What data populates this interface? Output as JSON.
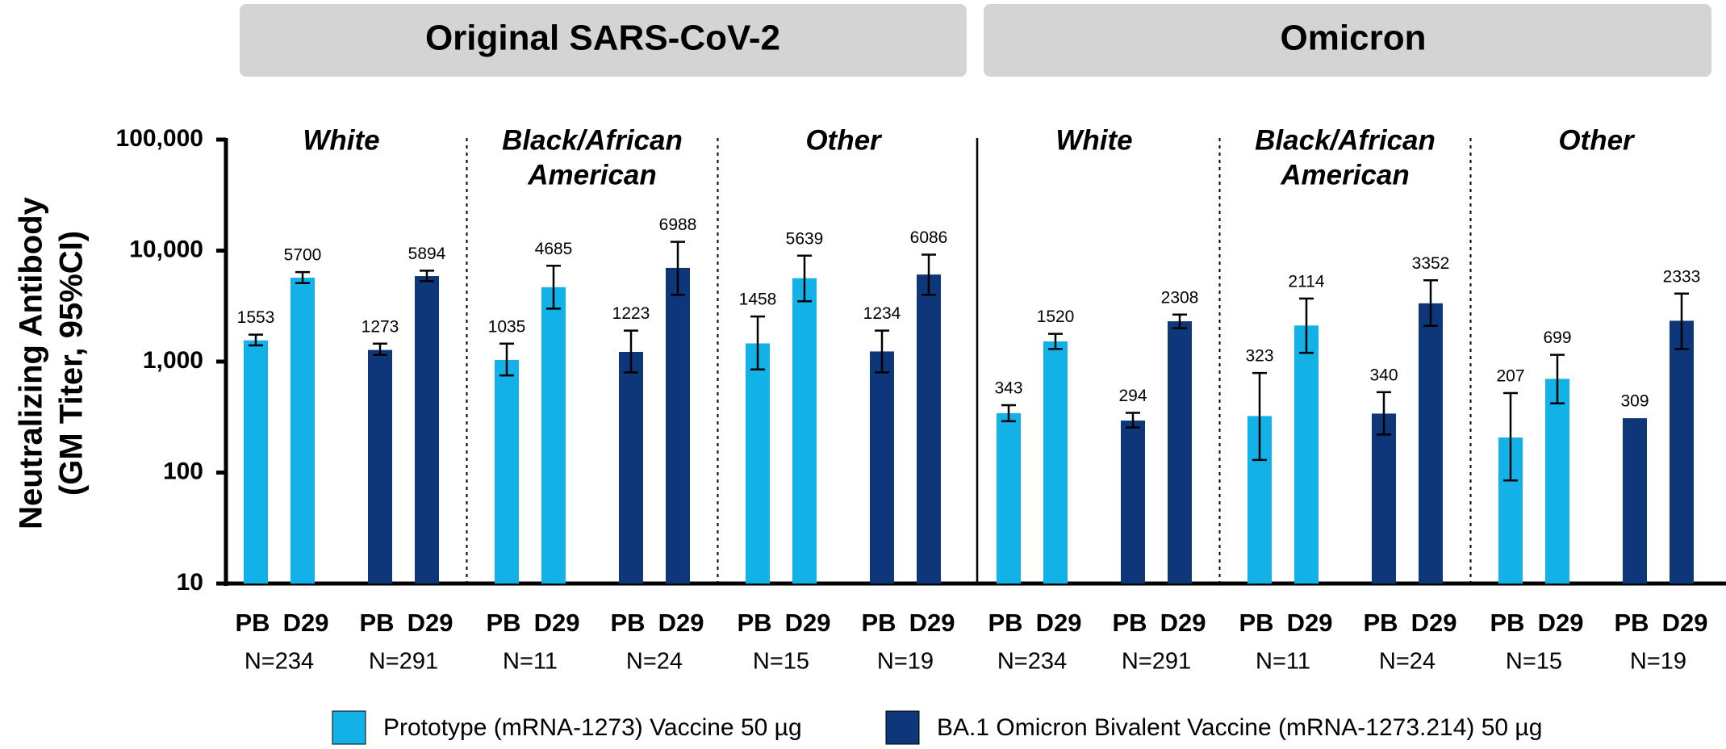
{
  "chart_data": {
    "type": "bar",
    "log_scale": true,
    "ylabel": [
      "Neutralizing Antibody",
      "(GM Titer, 95%CI)"
    ],
    "ylim": [
      10,
      100000
    ],
    "yticks": [
      10,
      100,
      {
        "value": 1000,
        "label": "1,000"
      },
      {
        "value": 10000,
        "label": "10,000"
      },
      {
        "value": 100000,
        "label": "100,000"
      }
    ],
    "series": [
      {
        "name": "Prototype (mRNA-1273) Vaccine 50 µg",
        "color": "#12b1e8"
      },
      {
        "name": "BA.1 Omicron Bivalent Vaccine (mRNA-1273.214) 50 µg",
        "color": "#0d3778"
      }
    ],
    "panels": [
      {
        "title": "Original SARS-CoV-2",
        "groups": [
          {
            "label": [
              "White"
            ],
            "series": [
              {
                "n": "N=234",
                "labels": [
                  "PB",
                  "D29"
                ],
                "values": [
                  1553,
                  5700
                ],
                "ci_low": [
                  1400,
                  5100
                ],
                "ci_high": [
                  1750,
                  6400
                ]
              },
              {
                "n": "N=291",
                "labels": [
                  "PB",
                  "D29"
                ],
                "values": [
                  1273,
                  5894
                ],
                "ci_low": [
                  1150,
                  5300
                ],
                "ci_high": [
                  1450,
                  6600
                ]
              }
            ]
          },
          {
            "label": [
              "Black/African",
              "American"
            ],
            "series": [
              {
                "n": "N=11",
                "labels": [
                  "PB",
                  "D29"
                ],
                "values": [
                  1035,
                  4685
                ],
                "ci_low": [
                  750,
                  3000
                ],
                "ci_high": [
                  1450,
                  7300
                ]
              },
              {
                "n": "N=24",
                "labels": [
                  "PB",
                  "D29"
                ],
                "values": [
                  1223,
                  6988
                ],
                "ci_low": [
                  800,
                  4000
                ],
                "ci_high": [
                  1900,
                  12000
                ]
              }
            ]
          },
          {
            "label": [
              "Other"
            ],
            "series": [
              {
                "n": "N=15",
                "labels": [
                  "PB",
                  "D29"
                ],
                "values": [
                  1458,
                  5639
                ],
                "ci_low": [
                  850,
                  3500
                ],
                "ci_high": [
                  2550,
                  9000
                ]
              },
              {
                "n": "N=19",
                "labels": [
                  "PB",
                  "D29"
                ],
                "values": [
                  1234,
                  6086
                ],
                "ci_low": [
                  800,
                  4000
                ],
                "ci_high": [
                  1900,
                  9200
                ]
              }
            ]
          }
        ]
      },
      {
        "title": "Omicron",
        "groups": [
          {
            "label": [
              "White"
            ],
            "series": [
              {
                "n": "N=234",
                "labels": [
                  "PB",
                  "D29"
                ],
                "values": [
                  343,
                  1520
                ],
                "ci_low": [
                  290,
                  1300
                ],
                "ci_high": [
                  405,
                  1780
                ]
              },
              {
                "n": "N=291",
                "labels": [
                  "PB",
                  "D29"
                ],
                "values": [
                  294,
                  2308
                ],
                "ci_low": [
                  255,
                  2000
                ],
                "ci_high": [
                  345,
                  2650
                ]
              }
            ]
          },
          {
            "label": [
              "Black/African",
              "American"
            ],
            "series": [
              {
                "n": "N=11",
                "labels": [
                  "PB",
                  "D29"
                ],
                "values": [
                  323,
                  2114
                ],
                "ci_low": [
                  130,
                  1200
                ],
                "ci_high": [
                  790,
                  3700
                ]
              },
              {
                "n": "N=24",
                "labels": [
                  "PB",
                  "D29"
                ],
                "values": [
                  340,
                  3352
                ],
                "ci_low": [
                  220,
                  2100
                ],
                "ci_high": [
                  530,
                  5400
                ]
              }
            ]
          },
          {
            "label": [
              "Other"
            ],
            "series": [
              {
                "n": "N=15",
                "labels": [
                  "PB",
                  "D29"
                ],
                "values": [
                  207,
                  699
                ],
                "ci_low": [
                  85,
                  420
                ],
                "ci_high": [
                  520,
                  1150
                ]
              },
              {
                "n": "N=19",
                "labels": [
                  "PB",
                  "D29"
                ],
                "values": [
                  309,
                  2333
                ],
                "ci_low": [
                  null,
                  1300
                ],
                "ci_high": [
                  null,
                  4100
                ]
              }
            ]
          }
        ]
      }
    ]
  }
}
